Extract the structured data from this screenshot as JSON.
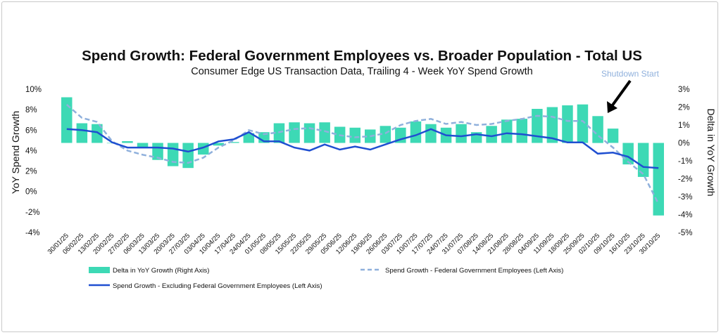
{
  "chart_data": {
    "type": "bar+line",
    "title": "Spend Growth: Federal Government Employees vs. Broader Population - Total US",
    "subtitle": "Consumer Edge US Transaction Data, Trailing 4 - Week YoY Spend Growth",
    "ylabel_left": "YoY Spend Growth",
    "ylabel_right": "Delta in YoY Growth",
    "ylim_left": [
      -4,
      10
    ],
    "ylim_right": [
      -5,
      3
    ],
    "yticks_left": [
      "10%",
      "8%",
      "6%",
      "4%",
      "2%",
      "0%",
      "-2%",
      "-4%"
    ],
    "yticks_right": [
      "3%",
      "2%",
      "1%",
      "0%",
      "-1%",
      "-2%",
      "-3%",
      "-4%",
      "-5%"
    ],
    "categories": [
      "30/01/25",
      "06/02/25",
      "13/02/25",
      "20/02/25",
      "27/02/25",
      "06/03/25",
      "13/03/25",
      "20/03/25",
      "27/03/25",
      "03/04/25",
      "10/04/25",
      "17/04/25",
      "24/04/25",
      "01/05/25",
      "08/05/25",
      "15/05/25",
      "22/05/25",
      "29/05/25",
      "05/06/25",
      "12/06/25",
      "19/06/25",
      "26/06/25",
      "03/07/25",
      "10/07/25",
      "17/07/25",
      "24/07/25",
      "31/07/25",
      "07/08/25",
      "14/08/25",
      "21/08/25",
      "28/08/25",
      "04/09/25",
      "11/09/25",
      "18/09/25",
      "25/09/25",
      "02/10/25",
      "09/10/25",
      "16/10/25",
      "23/10/25",
      "30/10/25"
    ],
    "series": [
      {
        "name": "Delta in YoY Growth (Right Axis)",
        "kind": "bar",
        "axis": "right",
        "color": "#3dd9b5",
        "values": [
          2.55,
          1.1,
          1.05,
          0.0,
          0.1,
          -0.25,
          -0.95,
          -1.3,
          -1.4,
          -0.65,
          -0.15,
          0.05,
          0.55,
          0.6,
          1.1,
          1.15,
          1.1,
          1.15,
          0.9,
          0.85,
          0.75,
          0.95,
          0.85,
          1.2,
          1.05,
          0.85,
          1.05,
          0.6,
          0.95,
          1.3,
          1.35,
          1.9,
          2.0,
          2.1,
          2.15,
          1.5,
          0.8,
          -1.2,
          -1.9,
          -4.05
        ]
      },
      {
        "name": "Spend Growth - Federal Government Employees (Left Axis)",
        "kind": "line",
        "style": "dashed",
        "axis": "left",
        "color": "#8fb0dc",
        "values": [
          8.5,
          7.2,
          6.8,
          4.9,
          4.0,
          3.6,
          3.3,
          2.9,
          2.8,
          3.3,
          4.3,
          5.0,
          6.0,
          5.6,
          5.8,
          6.1,
          6.2,
          5.9,
          5.5,
          5.3,
          5.4,
          5.7,
          6.5,
          6.9,
          7.1,
          6.6,
          6.8,
          6.5,
          6.6,
          6.9,
          7.1,
          7.4,
          7.3,
          6.9,
          6.9,
          5.5,
          4.3,
          2.9,
          1.7,
          -1.2
        ]
      },
      {
        "name": "Spend Growth - Excluding Federal Government Employees (Left Axis)",
        "kind": "line",
        "style": "solid",
        "axis": "left",
        "color": "#1f4fd1",
        "values": [
          6.1,
          6.0,
          5.8,
          4.8,
          4.3,
          4.3,
          4.3,
          4.2,
          3.9,
          4.3,
          4.9,
          5.1,
          5.8,
          4.9,
          4.9,
          4.3,
          4.0,
          4.6,
          4.1,
          4.4,
          4.1,
          4.6,
          5.1,
          5.5,
          6.1,
          5.5,
          5.4,
          5.6,
          5.4,
          5.7,
          5.6,
          5.4,
          5.2,
          4.8,
          4.8,
          3.7,
          3.8,
          3.4,
          2.4,
          2.3
        ]
      }
    ],
    "annotations": [
      {
        "text": "Shutdown Start",
        "at": "02/10/25"
      }
    ],
    "legend_placement": "bottom"
  }
}
